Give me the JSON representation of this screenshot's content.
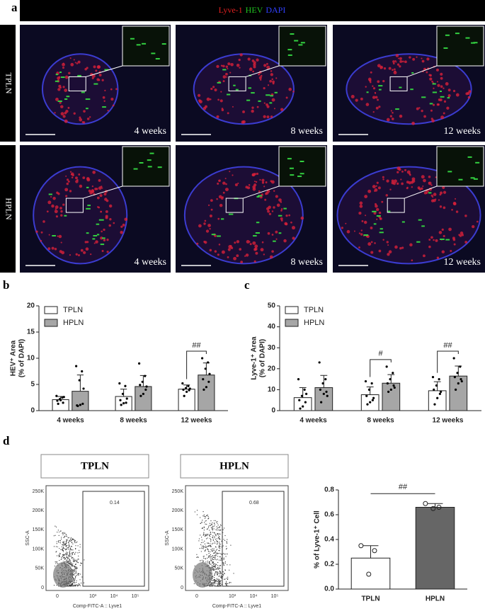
{
  "panel_labels": [
    "a",
    "b",
    "c",
    "d"
  ],
  "micrograph": {
    "legend": [
      {
        "text": "Lyve-1",
        "color": "#e02020"
      },
      {
        "text": "HEV",
        "color": "#20c020"
      },
      {
        "text": "DAPI",
        "color": "#3040ff"
      }
    ],
    "rows": [
      "TPLN",
      "HPLN"
    ],
    "timepoints": [
      "4 weeks",
      "8 weeks",
      "12 weeks"
    ]
  },
  "flow": {
    "panels": [
      {
        "title": "TPLN",
        "gate_value": "0.14"
      },
      {
        "title": "HPLN",
        "gate_value": "0.68"
      }
    ],
    "x_label": "Comp-FITC-A :: Lyve1",
    "y_label": "SSC-A",
    "yticks": [
      "0",
      "50K",
      "100K",
      "150K",
      "200K",
      "250K"
    ],
    "xticks": [
      "0",
      "10³",
      "10⁴",
      "10⁵"
    ]
  },
  "chart_data": [
    {
      "type": "bar",
      "ylabel": [
        "HEV⁺ Area",
        "(% of DAPI)"
      ],
      "categories": [
        "4 weeks",
        "8 weeks",
        "12 weeks"
      ],
      "ylim": [
        0,
        20
      ],
      "yticks": [
        0,
        5,
        10,
        15,
        20
      ],
      "legend": "upper left",
      "series": [
        {
          "name": "TPLN",
          "color": "#ffffff",
          "values": [
            2.1,
            2.7,
            4.1
          ],
          "errors": [
            0.6,
            1.4,
            0.8
          ],
          "points": [
            [
              2.8,
              2.5,
              2.2,
              1.9,
              1.5,
              2.0,
              1.3,
              2.6
            ],
            [
              5.2,
              4.7,
              3.2,
              2.0,
              1.5,
              1.4,
              1.1,
              2.3
            ],
            [
              5.2,
              4.7,
              4.3,
              4.0,
              3.9,
              3.6,
              2.8,
              4.2
            ]
          ]
        },
        {
          "name": "HPLN",
          "color": "#a6a6a6",
          "values": [
            3.7,
            4.6,
            6.8
          ],
          "errors": [
            3.1,
            2.1,
            2.3
          ],
          "points": [
            [
              8.5,
              7.5,
              5.8,
              1.0,
              1.3,
              1.1,
              0.9,
              4.2
            ],
            [
              9.0,
              6.6,
              5.5,
              4.9,
              4.0,
              3.2,
              2.8,
              4.6
            ],
            [
              10.0,
              9.2,
              8.0,
              6.0,
              5.5,
              4.5,
              4.0,
              7.0
            ]
          ]
        }
      ],
      "annotations": [
        {
          "text": "##",
          "category": 2
        }
      ]
    },
    {
      "type": "bar",
      "ylabel": [
        "Lyve-1⁺ Area",
        "(% of DAPI)"
      ],
      "categories": [
        "4 weeks",
        "8 weeks",
        "12 weeks"
      ],
      "ylim": [
        0,
        50
      ],
      "yticks": [
        0,
        10,
        20,
        30,
        40,
        50
      ],
      "legend": "upper left",
      "series": [
        {
          "name": "TPLN",
          "color": "#ffffff",
          "values": [
            6.2,
            7.6,
            9.5
          ],
          "errors": [
            4.8,
            3.7,
            4.3
          ],
          "points": [
            [
              15,
              10,
              7,
              5,
              4,
              2,
              1,
              8
            ],
            [
              14,
              13,
              10,
              7,
              5,
              4,
              3,
              6
            ],
            [
              16,
              15,
              12,
              10,
              8,
              6,
              3,
              9
            ]
          ]
        },
        {
          "name": "HPLN",
          "color": "#a6a6a6",
          "values": [
            11.0,
            13.1,
            16.5
          ],
          "errors": [
            5.8,
            4.1,
            4.8
          ],
          "points": [
            [
              23,
              15,
              13,
              10,
              9,
              8,
              4,
              7
            ],
            [
              21,
              18,
              15,
              13,
              12,
              10,
              9,
              11
            ],
            [
              25,
              21,
              18,
              16,
              15,
              13,
              10,
              14
            ]
          ]
        }
      ],
      "annotations": [
        {
          "text": "#",
          "category": 1
        },
        {
          "text": "##",
          "category": 2
        }
      ]
    },
    {
      "type": "bar",
      "ylabel": [
        "% of Lyve-1⁺ Cell"
      ],
      "categories": [
        "TPLN",
        "HPLN"
      ],
      "ylim": [
        0,
        0.8
      ],
      "yticks": [
        {
          "value": 0,
          "label": "0.0"
        },
        {
          "value": 0.2,
          "label": "0.2"
        },
        {
          "value": 0.4,
          "label": "0.4"
        },
        {
          "value": 0.6,
          "label": "0.6"
        },
        {
          "value": 0.8,
          "label": "0.8"
        }
      ],
      "colors": [
        "#ffffff",
        "#666666"
      ],
      "values": [
        0.25,
        0.66
      ],
      "errors": [
        0.1,
        0.03
      ],
      "points": [
        [
          0.35,
          0.31,
          0.12
        ],
        [
          0.69,
          0.66,
          0.65
        ]
      ],
      "annotations": [
        {
          "text": "##"
        }
      ]
    }
  ]
}
